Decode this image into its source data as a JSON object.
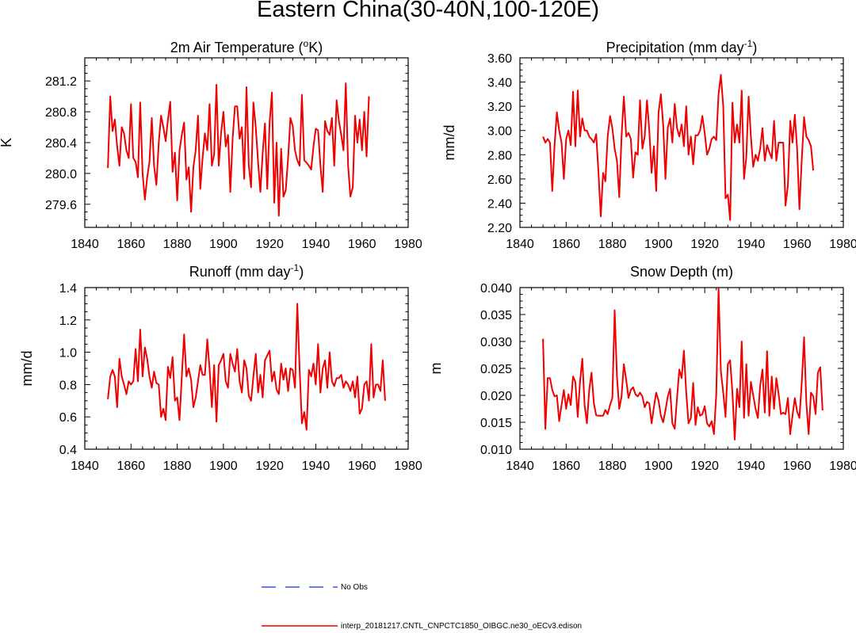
{
  "figure_title": "Eastern China(30-40N,100-120E)",
  "legend": [
    {
      "label": "No Obs",
      "color": "#3355dd",
      "style": "dashed"
    },
    {
      "label": "interp_20181217.CNTL_CNPCTC1850_OIBGC.ne30_oECv3.edison",
      "color": "#ee0000",
      "style": "solid"
    }
  ],
  "chart_data": [
    {
      "type": "line",
      "title": "2m Air Temperature (",
      "title_sup": "o",
      "title_tail": "K)",
      "ylabel": "K",
      "xlim": [
        1840,
        1980
      ],
      "ylim": [
        279.3,
        281.5
      ],
      "xticks": [
        1840,
        1860,
        1880,
        1900,
        1920,
        1940,
        1960,
        1980
      ],
      "xtick_labels": [
        "1840",
        "1860",
        "1880",
        "1900",
        "1920",
        "1940",
        "1960",
        "1980"
      ],
      "yticks": [
        279.6,
        280.0,
        280.4,
        280.8,
        281.2
      ],
      "ytick_labels": [
        "279.6",
        "280.0",
        "280.4",
        "280.8",
        "281.2"
      ],
      "series": [
        {
          "name": "CNTL",
          "color": "#ee0000",
          "x_start": 1850,
          "values": [
            280.07,
            281.0,
            280.55,
            280.7,
            280.35,
            280.1,
            280.6,
            280.52,
            280.3,
            280.2,
            280.9,
            280.2,
            280.15,
            279.95,
            280.92,
            280.0,
            279.66,
            279.95,
            280.15,
            280.72,
            280.1,
            279.85,
            280.4,
            280.75,
            280.6,
            280.42,
            280.7,
            280.93,
            280.02,
            280.27,
            279.65,
            280.3,
            280.5,
            280.66,
            279.92,
            280.08,
            279.5,
            280.08,
            280.3,
            280.75,
            279.8,
            280.2,
            280.52,
            280.3,
            280.9,
            280.1,
            280.25,
            281.15,
            280.1,
            280.52,
            280.8,
            280.35,
            280.5,
            279.76,
            280.45,
            280.87,
            280.87,
            280.45,
            280.6,
            279.93,
            281.12,
            280.1,
            279.82,
            280.92,
            280.6,
            280.15,
            279.76,
            280.26,
            280.65,
            279.8,
            280.65,
            281.05,
            279.62,
            280.4,
            279.45,
            280.32,
            279.7,
            279.78,
            280.2,
            280.72,
            280.62,
            280.3,
            280.17,
            280.1,
            281.02,
            280.17,
            280.14,
            280.1,
            280.05,
            280.35,
            280.58,
            280.56,
            280.1,
            279.76,
            280.68,
            280.55,
            280.5,
            280.72,
            280.1,
            280.95,
            280.68,
            280.5,
            280.3,
            281.17,
            280.1,
            279.7,
            279.82,
            280.75,
            280.4,
            280.7,
            280.3,
            280.8,
            280.22,
            281.0
          ]
        }
      ]
    },
    {
      "type": "line",
      "title": "Precipitation (mm day",
      "title_sup": "-1",
      "title_tail": ")",
      "ylabel": "mm/d",
      "xlim": [
        1840,
        1980
      ],
      "ylim": [
        2.2,
        3.6
      ],
      "xticks": [
        1840,
        1860,
        1880,
        1900,
        1920,
        1940,
        1960,
        1980
      ],
      "xtick_labels": [
        "1840",
        "1860",
        "1880",
        "1900",
        "1920",
        "1940",
        "1960",
        "1980"
      ],
      "yticks": [
        2.2,
        2.4,
        2.6,
        2.8,
        3.0,
        3.2,
        3.4,
        3.6
      ],
      "ytick_labels": [
        "2.20",
        "2.40",
        "2.60",
        "2.80",
        "3.00",
        "3.20",
        "3.40",
        "3.60"
      ],
      "series": [
        {
          "name": "CNTL",
          "color": "#ee0000",
          "x_start": 1850,
          "values": [
            2.95,
            2.9,
            2.93,
            2.9,
            2.5,
            2.88,
            3.15,
            3.0,
            2.9,
            2.6,
            2.93,
            3.0,
            2.88,
            3.32,
            2.87,
            3.33,
            2.95,
            3.1,
            3.0,
            3.0,
            2.95,
            2.93,
            2.9,
            2.97,
            2.65,
            2.29,
            2.65,
            2.58,
            2.95,
            3.12,
            3.02,
            2.85,
            2.75,
            2.45,
            2.95,
            3.28,
            2.95,
            2.98,
            2.93,
            2.61,
            2.82,
            2.8,
            3.25,
            2.85,
            2.95,
            3.25,
            3.0,
            2.65,
            2.87,
            2.5,
            3.15,
            3.3,
            3.05,
            2.6,
            3.02,
            3.1,
            2.9,
            3.22,
            3.02,
            2.95,
            3.05,
            2.87,
            3.2,
            2.8,
            2.95,
            2.72,
            2.96,
            2.96,
            3.0,
            3.12,
            2.98,
            2.8,
            2.85,
            2.93,
            2.95,
            2.92,
            3.3,
            3.46,
            3.2,
            2.44,
            2.47,
            2.26,
            3.23,
            2.9,
            3.05,
            2.9,
            3.33,
            2.6,
            2.78,
            3.28,
            2.95,
            2.7,
            2.8,
            2.75,
            2.85,
            3.02,
            2.75,
            2.88,
            2.82,
            2.77,
            3.08,
            2.75,
            2.9,
            2.9,
            2.9,
            2.38,
            2.55,
            3.08,
            2.9,
            3.13,
            2.85,
            2.35,
            2.75,
            3.11,
            2.95,
            2.92,
            2.87,
            2.67
          ]
        }
      ]
    },
    {
      "type": "line",
      "title": "Runoff (mm day",
      "title_sup": "-1",
      "title_tail": ")",
      "ylabel": "mm/d",
      "xlim": [
        1840,
        1980
      ],
      "ylim": [
        0.4,
        1.4
      ],
      "xticks": [
        1840,
        1860,
        1880,
        1900,
        1920,
        1940,
        1960,
        1980
      ],
      "xtick_labels": [
        "1840",
        "1860",
        "1880",
        "1900",
        "1920",
        "1940",
        "1960",
        "1980"
      ],
      "yticks": [
        0.4,
        0.6,
        0.8,
        1.0,
        1.2,
        1.4
      ],
      "ytick_labels": [
        "0.4",
        "0.6",
        "0.8",
        "1.0",
        "1.2",
        "1.4"
      ],
      "series": [
        {
          "name": "CNTL",
          "color": "#ee0000",
          "x_start": 1850,
          "values": [
            0.71,
            0.85,
            0.89,
            0.85,
            0.66,
            0.96,
            0.85,
            0.8,
            0.74,
            0.82,
            0.8,
            0.82,
            1.02,
            0.82,
            1.14,
            0.85,
            1.03,
            0.96,
            0.85,
            0.78,
            0.88,
            0.81,
            0.8,
            0.6,
            0.65,
            0.58,
            0.91,
            0.84,
            0.97,
            0.7,
            0.72,
            0.58,
            0.85,
            1.11,
            0.85,
            0.9,
            0.83,
            0.66,
            0.72,
            0.82,
            0.92,
            0.86,
            0.86,
            1.08,
            0.9,
            0.66,
            0.92,
            0.57,
            0.92,
            0.95,
            0.99,
            0.82,
            0.78,
            0.99,
            0.93,
            0.88,
            1.02,
            0.82,
            0.75,
            0.95,
            0.9,
            0.73,
            0.7,
            0.85,
            0.99,
            0.75,
            0.86,
            0.72,
            0.95,
            0.98,
            1.01,
            0.82,
            0.88,
            0.77,
            0.74,
            0.93,
            0.83,
            0.9,
            0.76,
            0.9,
            0.89,
            0.78,
            1.3,
            0.9,
            0.56,
            0.63,
            0.52,
            0.89,
            0.85,
            0.93,
            0.8,
            1.05,
            0.75,
            0.9,
            0.95,
            0.78,
            1.0,
            0.82,
            0.79,
            0.84,
            0.84,
            0.86,
            0.78,
            0.82,
            0.8,
            0.76,
            0.82,
            0.72,
            0.85,
            0.62,
            0.65,
            0.8,
            0.82,
            0.7,
            1.05,
            0.72,
            0.8,
            0.8,
            0.76,
            0.95,
            0.7
          ]
        }
      ]
    },
    {
      "type": "line",
      "title": "Snow Depth (m)",
      "title_sup": "",
      "title_tail": "",
      "ylabel": "m",
      "xlim": [
        1840,
        1980
      ],
      "ylim": [
        0.01,
        0.04
      ],
      "xticks": [
        1840,
        1860,
        1880,
        1900,
        1920,
        1940,
        1960,
        1980
      ],
      "xtick_labels": [
        "1840",
        "1860",
        "1880",
        "1900",
        "1920",
        "1940",
        "1960",
        "1980"
      ],
      "yticks": [
        0.01,
        0.015,
        0.02,
        0.025,
        0.03,
        0.035,
        0.04
      ],
      "ytick_labels": [
        "0.010",
        "0.015",
        "0.020",
        "0.025",
        "0.030",
        "0.035",
        "0.040"
      ],
      "series": [
        {
          "name": "CNTL",
          "color": "#ee0000",
          "x_start": 1850,
          "values": [
            0.0305,
            0.0138,
            0.0232,
            0.0232,
            0.021,
            0.0198,
            0.02,
            0.0152,
            0.0182,
            0.021,
            0.0175,
            0.0202,
            0.0182,
            0.0235,
            0.0225,
            0.016,
            0.0225,
            0.0268,
            0.0182,
            0.0148,
            0.021,
            0.0242,
            0.0185,
            0.0163,
            0.0162,
            0.0162,
            0.0162,
            0.0173,
            0.0165,
            0.0182,
            0.0195,
            0.0358,
            0.0235,
            0.0175,
            0.0198,
            0.0258,
            0.0228,
            0.0195,
            0.021,
            0.0215,
            0.0202,
            0.0198,
            0.0205,
            0.0198,
            0.0178,
            0.0188,
            0.0185,
            0.0148,
            0.0178,
            0.0205,
            0.019,
            0.0162,
            0.015,
            0.0172,
            0.0198,
            0.0212,
            0.0148,
            0.0138,
            0.0195,
            0.0248,
            0.0232,
            0.0283,
            0.0205,
            0.0148,
            0.0158,
            0.0223,
            0.0145,
            0.0178,
            0.0162,
            0.0165,
            0.018,
            0.0148,
            0.0142,
            0.0152,
            0.0128,
            0.0202,
            0.0398,
            0.0245,
            0.0205,
            0.016,
            0.0258,
            0.0265,
            0.0205,
            0.0118,
            0.0212,
            0.0178,
            0.03,
            0.0158,
            0.0258,
            0.0162,
            0.0225,
            0.02,
            0.0175,
            0.0158,
            0.0218,
            0.0248,
            0.0168,
            0.0282,
            0.0162,
            0.0235,
            0.0175,
            0.0232,
            0.0202,
            0.0165,
            0.0168,
            0.0165,
            0.0195,
            0.0128,
            0.0162,
            0.0195,
            0.017,
            0.0158,
            0.0222,
            0.0308,
            0.0185,
            0.0128,
            0.0205,
            0.0198,
            0.0165,
            0.0242,
            0.0252,
            0.0172
          ]
        }
      ]
    }
  ]
}
